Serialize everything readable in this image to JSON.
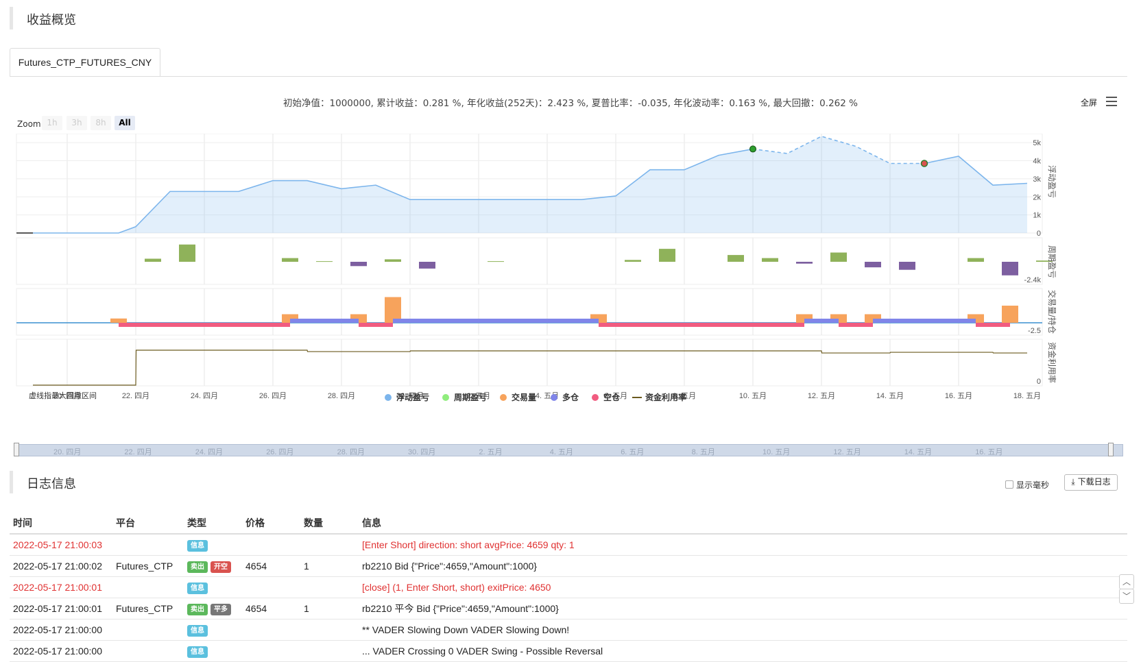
{
  "overview": {
    "title": "收益概览"
  },
  "tab": {
    "label": "Futures_CTP_FUTURES_CNY"
  },
  "summary": "初始净值：1000000, 累计收益：0.281 %, 年化收益(252天)：2.423 %, 夏普比率：-0.035, 年化波动率：0.163 %, 最大回撤：0.262 %",
  "toolbar": {
    "fullscreen": "全屏",
    "menu_icon": "menu-icon"
  },
  "zoom": {
    "label": "Zoom",
    "buttons": [
      "1h",
      "3h",
      "8h",
      "All"
    ],
    "active": "All"
  },
  "chart_data": {
    "type": "line",
    "x_labels": [
      "20. 四月",
      "22. 四月",
      "24. 四月",
      "26. 四月",
      "28. 四月",
      "30. 四月",
      "2. 五月",
      "4. 五月",
      "6. 五月",
      "8. 五月",
      "10. 五月",
      "12. 五月",
      "14. 五月",
      "16. 五月",
      "18. 五月"
    ],
    "note_text": "虚线指最大回撤区间",
    "panels": [
      {
        "name": "浮动盈亏",
        "ticks": [
          "0",
          "1k",
          "2k",
          "3k",
          "4k",
          "5k"
        ],
        "ylim": [
          0,
          5500
        ],
        "series": [
          {
            "name": "浮动盈亏",
            "x": [
              0,
              1,
              2,
              2.5,
              3,
              4,
              5,
              6,
              7,
              8,
              9,
              10,
              11,
              12,
              13,
              14,
              15,
              15.5,
              16,
              17,
              18,
              19,
              20,
              21,
              22,
              23,
              24,
              25,
              26,
              27,
              28,
              29
            ],
            "values": [
              0,
              0,
              0,
              0,
              350,
              2300,
              2300,
              2300,
              2900,
              2900,
              2450,
              2650,
              1850,
              1850,
              1850,
              1850,
              1850,
              1850,
              1850,
              2050,
              3500,
              3500,
              4300,
              4650,
              4400,
              5350,
              4800,
              3850,
              3850,
              4250,
              2650,
              2750
            ]
          }
        ],
        "drawdown": {
          "start_index": 23,
          "end_index": 28
        }
      },
      {
        "name": "周期盈亏",
        "ticks": [
          "-2.4k"
        ],
        "bars": [
          {
            "x": 3.5,
            "value": 0.25
          },
          {
            "x": 4.5,
            "value": 1.4
          },
          {
            "x": 7.5,
            "value": 0.3
          },
          {
            "x": 8.5,
            "value": 0.05
          },
          {
            "x": 9.5,
            "value": -0.35
          },
          {
            "x": 10.5,
            "value": 0.2
          },
          {
            "x": 11.5,
            "value": -0.55
          },
          {
            "x": 13.5,
            "value": 0.05
          },
          {
            "x": 17.5,
            "value": 0.15
          },
          {
            "x": 18.5,
            "value": 1.05
          },
          {
            "x": 20.5,
            "value": 0.55
          },
          {
            "x": 21.5,
            "value": 0.3
          },
          {
            "x": 22.5,
            "value": -0.15
          },
          {
            "x": 23.5,
            "value": 0.75
          },
          {
            "x": 24.5,
            "value": -0.45
          },
          {
            "x": 25.5,
            "value": -0.65
          },
          {
            "x": 27.5,
            "value": 0.3
          },
          {
            "x": 28.5,
            "value": -1.1
          },
          {
            "x": 29.5,
            "value": 0.1
          }
        ]
      },
      {
        "name": "交易量/持仓",
        "ticks": [
          "-2.5"
        ],
        "volume_bars": [
          {
            "x": 2.5,
            "value": 0.5
          },
          {
            "x": 7.5,
            "value": 1
          },
          {
            "x": 9.5,
            "value": 1
          },
          {
            "x": 10.5,
            "value": 3
          },
          {
            "x": 16.5,
            "value": 1
          },
          {
            "x": 22.5,
            "value": 1
          },
          {
            "x": 23.5,
            "value": 1
          },
          {
            "x": 24.5,
            "value": 1
          },
          {
            "x": 27.5,
            "value": 1
          },
          {
            "x": 28.5,
            "value": 2
          }
        ],
        "long_positions": [
          [
            7.5,
            9.5
          ],
          [
            10.5,
            16.5
          ],
          [
            22.5,
            23.5
          ],
          [
            24.5,
            27.5
          ]
        ],
        "short_positions": [
          [
            2.5,
            7.5
          ],
          [
            9.5,
            10.5
          ],
          [
            16.5,
            22.5
          ],
          [
            23.5,
            24.5
          ],
          [
            27.5,
            28.5
          ]
        ]
      },
      {
        "name": "资金利用率",
        "ticks": [
          "0"
        ],
        "series": [
          {
            "name": "资金利用率",
            "x": [
              0,
              1,
              2,
              3,
              3.01,
              5,
              8,
              8.01,
              11,
              11.01,
              23,
              23.01,
              25,
              25.01,
              28,
              28.01,
              29
            ],
            "values": [
              0,
              0,
              0,
              0,
              1,
              1,
              1,
              0.96,
              0.96,
              0.98,
              0.98,
              0.92,
              0.92,
              0.94,
              0.94,
              0.92,
              0.92
            ]
          }
        ]
      }
    ],
    "legend": [
      {
        "name": "浮动盈亏",
        "color": "#7cb5ec",
        "shape": "circle"
      },
      {
        "name": "周期盈亏",
        "color": "#90ed7d",
        "shape": "circle"
      },
      {
        "name": "交易量",
        "color": "#f7a35c",
        "shape": "circle"
      },
      {
        "name": "多仓",
        "color": "#8085e9",
        "shape": "circle"
      },
      {
        "name": "空仓",
        "color": "#f15c80",
        "shape": "circle"
      },
      {
        "name": "资金利用率",
        "color": "#6b5a1e",
        "shape": "line"
      }
    ],
    "navigator_labels": [
      "20. 四月",
      "22. 四月",
      "24. 四月",
      "26. 四月",
      "28. 四月",
      "30. 四月",
      "2. 五月",
      "4. 五月",
      "6. 五月",
      "8. 五月",
      "10. 五月",
      "12. 五月",
      "14. 五月",
      "16. 五月"
    ]
  },
  "log": {
    "title": "日志信息",
    "show_ms": "显示毫秒",
    "download": "下载日志",
    "columns": [
      "时间",
      "平台",
      "类型",
      "价格",
      "数量",
      "信息"
    ],
    "rows": [
      {
        "time": "2022-05-17 21:00:03",
        "platform": "",
        "badges": [
          "信息"
        ],
        "price": "",
        "qty": "",
        "info": "[Enter Short] direction: short avgPrice: 4659 qty: 1",
        "red": true
      },
      {
        "time": "2022-05-17 21:00:02",
        "platform": "Futures_CTP",
        "badges": [
          "卖出",
          "开空"
        ],
        "price": "4654",
        "qty": "1",
        "info": "rb2210 Bid {\"Price\":4659,\"Amount\":1000}",
        "red": false
      },
      {
        "time": "2022-05-17 21:00:01",
        "platform": "",
        "badges": [
          "信息"
        ],
        "price": "",
        "qty": "",
        "info": "[close] (1, Enter Short, short) exitPrice: 4650",
        "red": true
      },
      {
        "time": "2022-05-17 21:00:01",
        "platform": "Futures_CTP",
        "badges": [
          "卖出",
          "平多"
        ],
        "price": "4654",
        "qty": "1",
        "info": "rb2210 平今 Bid {\"Price\":4659,\"Amount\":1000}",
        "red": false
      },
      {
        "time": "2022-05-17 21:00:00",
        "platform": "",
        "badges": [
          "信息"
        ],
        "price": "",
        "qty": "",
        "info": "** VADER Slowing Down VADER Slowing Down!",
        "red": false
      },
      {
        "time": "2022-05-17 21:00:00",
        "platform": "",
        "badges": [
          "信息"
        ],
        "price": "",
        "qty": "",
        "info": "... VADER Crossing 0 VADER Swing - Possible Reversal",
        "red": false
      }
    ]
  }
}
